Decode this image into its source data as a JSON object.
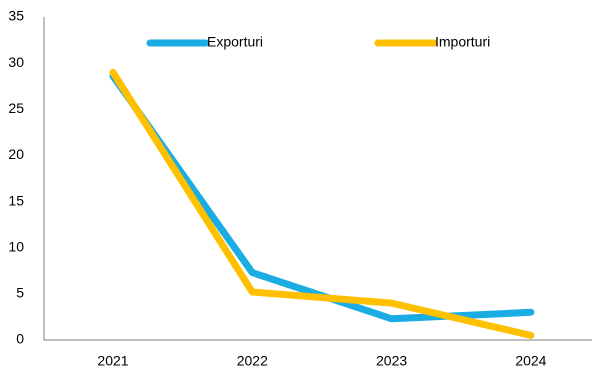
{
  "chart_data": {
    "type": "line",
    "title": "",
    "xlabel": "",
    "ylabel": "",
    "categories": [
      "2021",
      "2022",
      "2023",
      "2024"
    ],
    "series": [
      {
        "name": "Exporturi",
        "values": [
          28.6,
          7.3,
          2.3,
          3.0
        ],
        "color": "#1AADE4"
      },
      {
        "name": "Importuri",
        "values": [
          29.0,
          5.2,
          4.0,
          0.5
        ],
        "color": "#FFC000"
      }
    ],
    "ylim": [
      0,
      35
    ],
    "yticks": [
      0,
      5,
      10,
      15,
      20,
      25,
      30,
      35
    ],
    "grid": false,
    "legend": "top-center"
  }
}
